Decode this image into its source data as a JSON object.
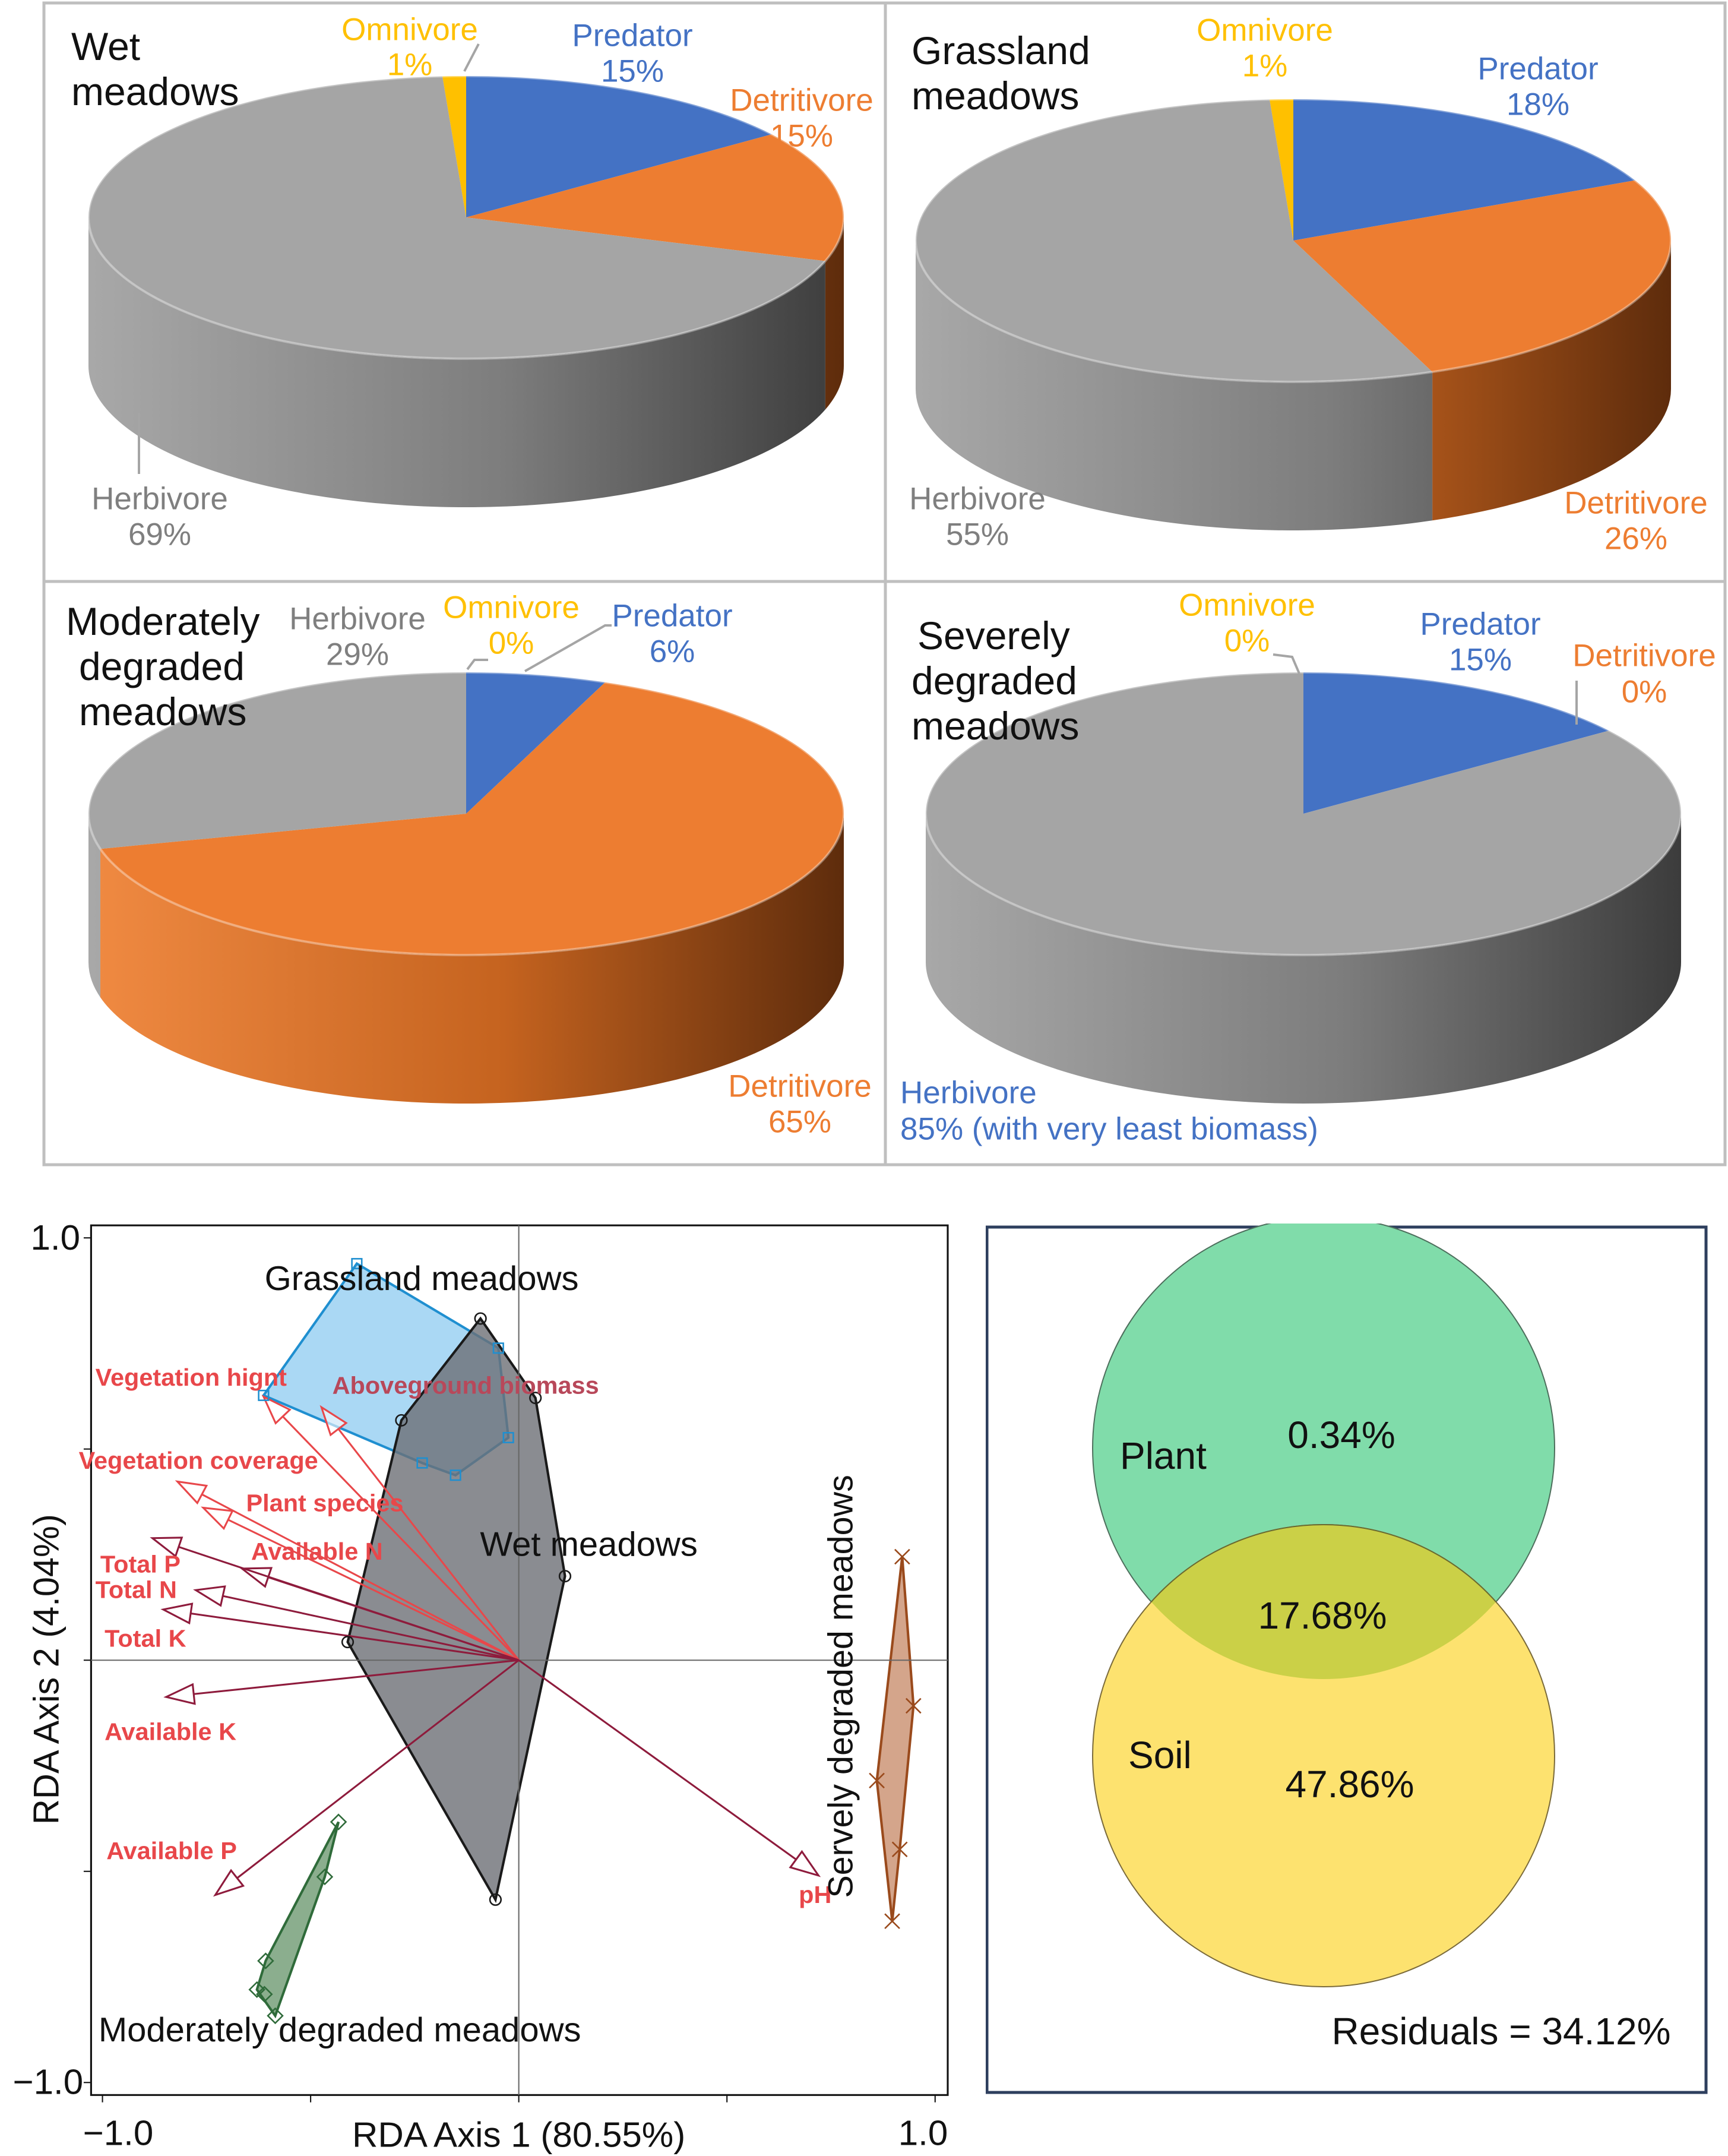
{
  "chart_data": [
    {
      "type": "pie",
      "title_lines": [
        "Wet",
        "meadows"
      ],
      "slices": [
        {
          "name": "Predator",
          "value": 15,
          "pct_label": "15%",
          "color": "#4472c4"
        },
        {
          "name": "Detritivore",
          "value": 15,
          "pct_label": "15%",
          "color": "#ed7d31"
        },
        {
          "name": "Herbivore",
          "value": 69,
          "pct_label": "69%",
          "color": "#a5a5a5"
        },
        {
          "name": "Omnivore",
          "value": 1,
          "pct_label": "1%",
          "color": "#ffc000"
        }
      ]
    },
    {
      "type": "pie",
      "title_lines": [
        "Grassland",
        "meadows"
      ],
      "slices": [
        {
          "name": "Predator",
          "value": 18,
          "pct_label": "18%",
          "color": "#4472c4"
        },
        {
          "name": "Detritivore",
          "value": 26,
          "pct_label": "26%",
          "color": "#ed7d31"
        },
        {
          "name": "Herbivore",
          "value": 55,
          "pct_label": "55%",
          "color": "#a5a5a5"
        },
        {
          "name": "Omnivore",
          "value": 1,
          "pct_label": "1%",
          "color": "#ffc000"
        }
      ]
    },
    {
      "type": "pie",
      "title_lines": [
        "Moderately",
        "degraded",
        "meadows"
      ],
      "slices": [
        {
          "name": "Predator",
          "value": 6,
          "pct_label": "6%",
          "color": "#4472c4"
        },
        {
          "name": "Detritivore",
          "value": 65,
          "pct_label": "65%",
          "color": "#ed7d31"
        },
        {
          "name": "Herbivore",
          "value": 29,
          "pct_label": "29%",
          "color": "#a5a5a5"
        },
        {
          "name": "Omnivore",
          "value": 0,
          "pct_label": "0%",
          "color": "#ffc000"
        }
      ]
    },
    {
      "type": "pie",
      "title_lines": [
        "Severely",
        "degraded",
        "meadows"
      ],
      "slices": [
        {
          "name": "Predator",
          "value": 15,
          "pct_label": "15%",
          "color": "#4472c4"
        },
        {
          "name": "Detritivore",
          "value": 0,
          "pct_label": "0%",
          "color": "#ed7d31"
        },
        {
          "name": "Herbivore",
          "value": 85,
          "pct_label": "85% (with very least biomass)",
          "color": "#a5a5a5"
        },
        {
          "name": "Omnivore",
          "value": 0,
          "pct_label": "0%",
          "color": "#ffc000"
        }
      ]
    },
    {
      "type": "scatter",
      "xlabel": "RDA Axis 1 (80.55%)",
      "ylabel": "RDA Axis 2 (4.04%)",
      "xlim": [
        -1.0,
        1.0
      ],
      "ylim": [
        -1.0,
        1.0
      ],
      "x_tick_labels": [
        "−1.0",
        "1.0"
      ],
      "y_tick_labels": [
        "1.0",
        "−1.0"
      ],
      "groups": [
        {
          "name": "Grassland meadows",
          "marker": "square",
          "color": "#1f8fd0",
          "fill": "#8ecbf0",
          "points": [
            [
              -0.389,
              0.939
            ],
            [
              -0.049,
              0.739
            ],
            [
              -0.025,
              0.527
            ],
            [
              -0.152,
              0.438
            ],
            [
              -0.232,
              0.467
            ],
            [
              -0.613,
              0.627
            ]
          ]
        },
        {
          "name": "Wet meadows",
          "marker": "circle",
          "color": "#1a1a1a",
          "fill": "#6d6f76",
          "points": [
            [
              -0.092,
              0.809
            ],
            [
              0.04,
              0.621
            ],
            [
              0.111,
              0.199
            ],
            [
              -0.056,
              -0.567
            ],
            [
              -0.411,
              0.043
            ],
            [
              -0.282,
              0.568
            ]
          ]
        },
        {
          "name": "Moderately degraded meadows",
          "marker": "diamond",
          "color": "#2f6b3a",
          "fill": "#6e9a72",
          "points": [
            [
              -0.433,
              -0.383
            ],
            [
              -0.466,
              -0.513
            ],
            [
              -0.608,
              -0.712
            ],
            [
              -0.629,
              -0.78
            ],
            [
              -0.611,
              -0.791
            ],
            [
              -0.585,
              -0.842
            ]
          ]
        },
        {
          "name": "Servely degraded meadows",
          "marker": "cross",
          "color": "#9a4a1c",
          "fill": "#c98f6e",
          "points": [
            [
              0.921,
              0.245
            ],
            [
              0.948,
              -0.108
            ],
            [
              0.915,
              -0.448
            ],
            [
              0.897,
              -0.618
            ],
            [
              0.86,
              -0.285
            ]
          ]
        }
      ],
      "arrows": [
        {
          "name": "Vegetation hignt",
          "x": -0.613,
          "y": 0.624,
          "color": "#e8474a"
        },
        {
          "name": "Aboveground biomass",
          "x": -0.474,
          "y": 0.599,
          "color": "#e8474a"
        },
        {
          "name": "Vegetation coverage",
          "x": -0.82,
          "y": 0.423,
          "color": "#e8474a"
        },
        {
          "name": "Plant species",
          "x": -0.758,
          "y": 0.361,
          "color": "#e8474a"
        },
        {
          "name": "Available N",
          "x": -0.665,
          "y": 0.217,
          "color": "#8e1b3c"
        },
        {
          "name": "Total P",
          "x": -0.88,
          "y": 0.289,
          "color": "#8e1b3c"
        },
        {
          "name": "Total N",
          "x": -0.776,
          "y": 0.166,
          "color": "#8e1b3c"
        },
        {
          "name": "Total K",
          "x": -0.854,
          "y": 0.12,
          "color": "#8e1b3c"
        },
        {
          "name": "Available K",
          "x": -0.847,
          "y": -0.087,
          "color": "#8e1b3c"
        },
        {
          "name": "Available P",
          "x": -0.729,
          "y": -0.556,
          "color": "#8e1b3c"
        },
        {
          "name": "pH",
          "x": 0.72,
          "y": -0.51,
          "color": "#8e1b3c"
        }
      ]
    },
    {
      "type": "venn",
      "sets": [
        {
          "name": "Plant",
          "unique": "0.34%",
          "color": "#80dcaa"
        },
        {
          "name": "Soil",
          "unique": "47.86%",
          "color": "#fde26f"
        }
      ],
      "shared": "17.68%",
      "shared_color": "#cbd047",
      "residuals": "Residuals = 34.12%"
    }
  ]
}
